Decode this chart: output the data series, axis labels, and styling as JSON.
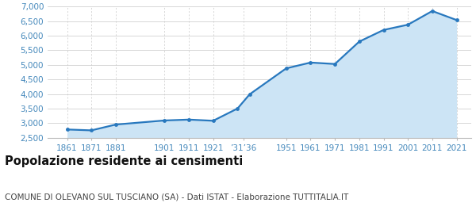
{
  "years": [
    1861,
    1871,
    1881,
    1901,
    1911,
    1921,
    1931,
    1936,
    1951,
    1961,
    1971,
    1981,
    1991,
    2001,
    2011,
    2021
  ],
  "population": [
    2780,
    2750,
    2950,
    3090,
    3120,
    3080,
    3500,
    3990,
    4880,
    5080,
    5030,
    5800,
    6200,
    6380,
    6850,
    6540
  ],
  "line_color": "#2878be",
  "fill_color": "#cce4f5",
  "marker_color": "#2878be",
  "grid_color": "#c8c8c8",
  "background_color": "#ffffff",
  "plot_bg_color": "#ffffff",
  "title": "Popolazione residente ai censimenti",
  "subtitle": "COMUNE DI OLEVANO SUL TUSCIANO (SA) - Dati ISTAT - Elaborazione TUTTITALIA.IT",
  "ylim": [
    2500,
    7000
  ],
  "yticks": [
    2500,
    3000,
    3500,
    4000,
    4500,
    5000,
    5500,
    6000,
    6500,
    7000
  ],
  "title_fontsize": 10.5,
  "subtitle_fontsize": 7.5,
  "tick_fontsize": 7.5,
  "tick_color": "#4488bb",
  "xlim_left": 1853,
  "xlim_right": 2027
}
